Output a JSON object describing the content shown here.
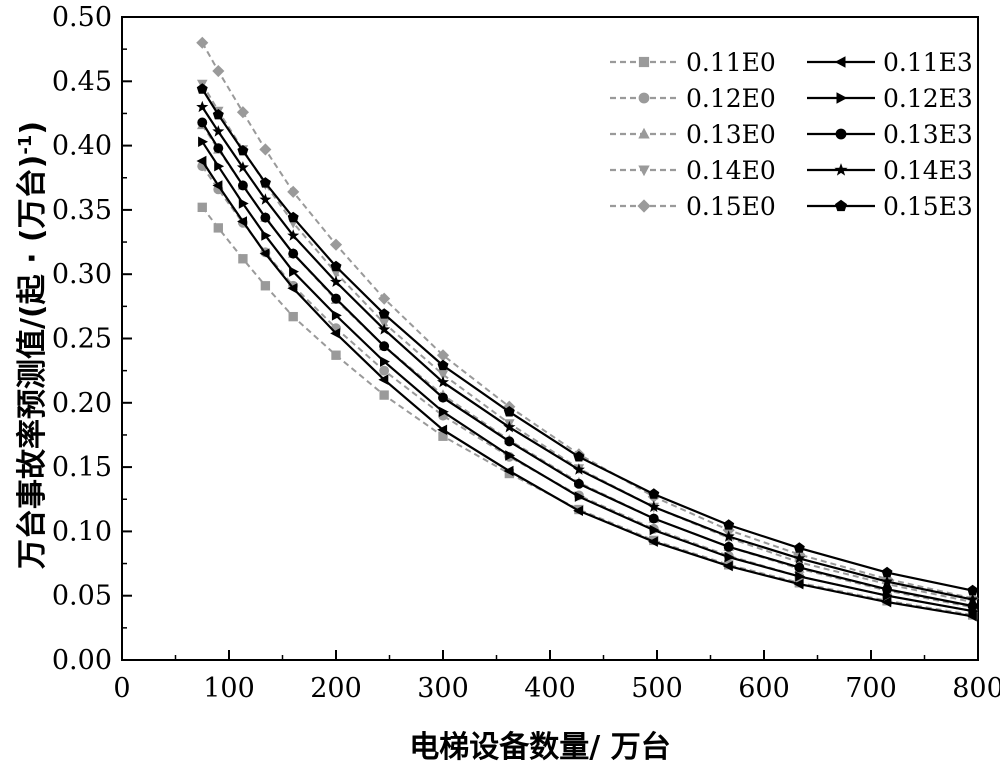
{
  "chart_data": {
    "type": "line",
    "xlabel": "电梯设备数量/ 万台",
    "ylabel": "万台事故率预测值/(起 · (万台)",
    "ylabel_sup": "-1",
    "ylabel_close": ")",
    "xlim": [
      0,
      800
    ],
    "ylim": [
      0,
      0.5
    ],
    "xticks": [
      "0",
      "100",
      "200",
      "300",
      "400",
      "500",
      "600",
      "700",
      "800"
    ],
    "yticks": [
      "0.00",
      "0.05",
      "0.10",
      "0.15",
      "0.20",
      "0.25",
      "0.30",
      "0.35",
      "0.40",
      "0.45",
      "0.50"
    ],
    "legend_position": "top-right",
    "x": [
      75,
      90,
      113,
      134,
      160,
      200,
      245,
      300,
      362,
      427,
      497,
      567,
      633,
      715,
      795
    ],
    "series": [
      {
        "name": "0.11E0",
        "style": "dashed",
        "marker": "square",
        "color": "#9a9a9a",
        "values": [
          0.352,
          0.336,
          0.312,
          0.291,
          0.267,
          0.237,
          0.206,
          0.174,
          0.145,
          0.117,
          0.093,
          0.074,
          0.06,
          0.046,
          0.035
        ]
      },
      {
        "name": "0.12E0",
        "style": "dashed",
        "marker": "circle",
        "color": "#9a9a9a",
        "values": [
          0.384,
          0.366,
          0.34,
          0.317,
          0.291,
          0.258,
          0.225,
          0.19,
          0.158,
          0.128,
          0.102,
          0.081,
          0.065,
          0.05,
          0.038
        ]
      },
      {
        "name": "0.13E0",
        "style": "dashed",
        "marker": "triangle-up",
        "color": "#9a9a9a",
        "values": [
          0.416,
          0.397,
          0.369,
          0.344,
          0.316,
          0.28,
          0.244,
          0.206,
          0.171,
          0.138,
          0.11,
          0.088,
          0.071,
          0.054,
          0.041
        ]
      },
      {
        "name": "0.14E0",
        "style": "dashed",
        "marker": "triangle-down",
        "color": "#9a9a9a",
        "values": [
          0.448,
          0.427,
          0.397,
          0.37,
          0.34,
          0.301,
          0.262,
          0.222,
          0.184,
          0.149,
          0.119,
          0.095,
          0.076,
          0.059,
          0.045
        ]
      },
      {
        "name": "0.15E0",
        "style": "dashed",
        "marker": "diamond",
        "color": "#9a9a9a",
        "values": [
          0.48,
          0.458,
          0.426,
          0.397,
          0.364,
          0.323,
          0.281,
          0.237,
          0.197,
          0.16,
          0.127,
          0.101,
          0.082,
          0.063,
          0.048
        ]
      },
      {
        "name": "0.11E3",
        "style": "solid",
        "marker": "triangle-left",
        "color": "#000000",
        "values": [
          0.388,
          0.369,
          0.341,
          0.316,
          0.289,
          0.254,
          0.218,
          0.179,
          0.147,
          0.116,
          0.092,
          0.073,
          0.059,
          0.045,
          0.034
        ]
      },
      {
        "name": "0.12E3",
        "style": "solid",
        "marker": "triangle-right",
        "color": "#000000",
        "values": [
          0.403,
          0.384,
          0.355,
          0.33,
          0.302,
          0.268,
          0.232,
          0.193,
          0.159,
          0.127,
          0.101,
          0.08,
          0.065,
          0.05,
          0.038
        ]
      },
      {
        "name": "0.13E3",
        "style": "solid",
        "marker": "circle",
        "color": "#000000",
        "values": [
          0.418,
          0.398,
          0.369,
          0.344,
          0.316,
          0.281,
          0.244,
          0.204,
          0.17,
          0.137,
          0.11,
          0.088,
          0.072,
          0.055,
          0.042
        ]
      },
      {
        "name": "0.14E3",
        "style": "solid",
        "marker": "star",
        "color": "#000000",
        "values": [
          0.43,
          0.411,
          0.383,
          0.358,
          0.33,
          0.294,
          0.257,
          0.216,
          0.181,
          0.148,
          0.119,
          0.096,
          0.079,
          0.061,
          0.047
        ]
      },
      {
        "name": "0.15E3",
        "style": "solid",
        "marker": "pentagon",
        "color": "#000000",
        "values": [
          0.444,
          0.424,
          0.396,
          0.371,
          0.344,
          0.306,
          0.269,
          0.229,
          0.193,
          0.158,
          0.129,
          0.105,
          0.087,
          0.068,
          0.054
        ]
      }
    ]
  }
}
